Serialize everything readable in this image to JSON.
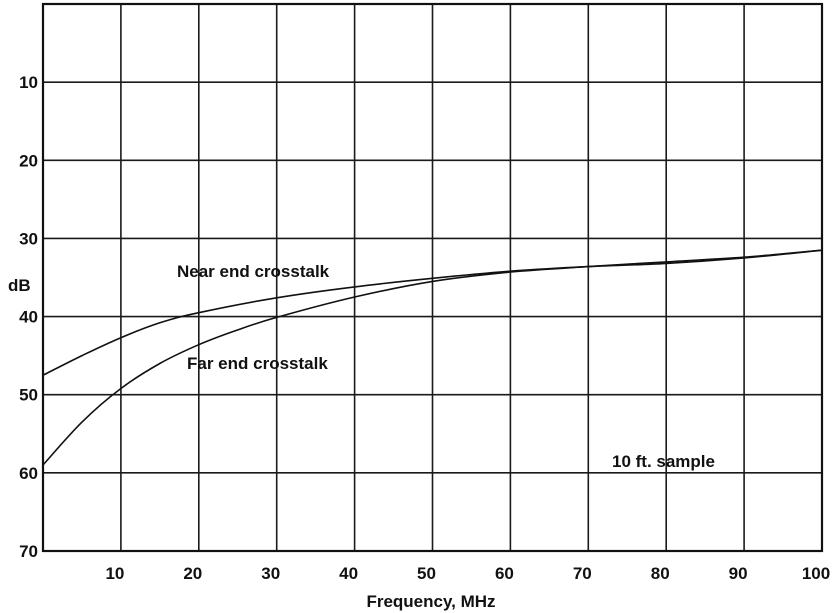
{
  "chart_data": {
    "type": "line",
    "xlabel": "Frequency, MHz",
    "ylabel": "dB",
    "xlim": [
      0,
      100
    ],
    "ylim": [
      70,
      0
    ],
    "y_inverted": true,
    "grid": true,
    "x_ticks": [
      10,
      20,
      30,
      40,
      50,
      60,
      70,
      80,
      90,
      100
    ],
    "x_tick_labels": [
      "10",
      "20",
      "30",
      "40",
      "50",
      "60",
      "70",
      "80",
      "90",
      "100"
    ],
    "y_ticks": [
      10,
      20,
      30,
      40,
      50,
      60,
      70
    ],
    "y_tick_labels": [
      "10",
      "20",
      "30",
      "40",
      "50",
      "60",
      "70"
    ],
    "series": [
      {
        "name": "Near end crosstalk",
        "x": [
          0,
          5,
          10,
          15,
          20,
          30,
          40,
          50,
          60,
          70,
          80,
          90,
          100
        ],
        "y": [
          47.5,
          45,
          42.7,
          40.8,
          39.5,
          37.6,
          36.2,
          35.1,
          34.2,
          33.6,
          33.2,
          32.5,
          31.5
        ]
      },
      {
        "name": "Far end crosstalk",
        "x": [
          0,
          5,
          10,
          15,
          20,
          25,
          30,
          40,
          50,
          60,
          70,
          80,
          90,
          100
        ],
        "y": [
          59,
          53.5,
          49.2,
          46,
          43.6,
          41.7,
          40.1,
          37.5,
          35.5,
          34.3,
          33.6,
          33,
          32.4,
          31.5
        ]
      }
    ],
    "annotations": [
      {
        "text": "10 ft. sample",
        "x": 85,
        "y": 58
      }
    ]
  }
}
